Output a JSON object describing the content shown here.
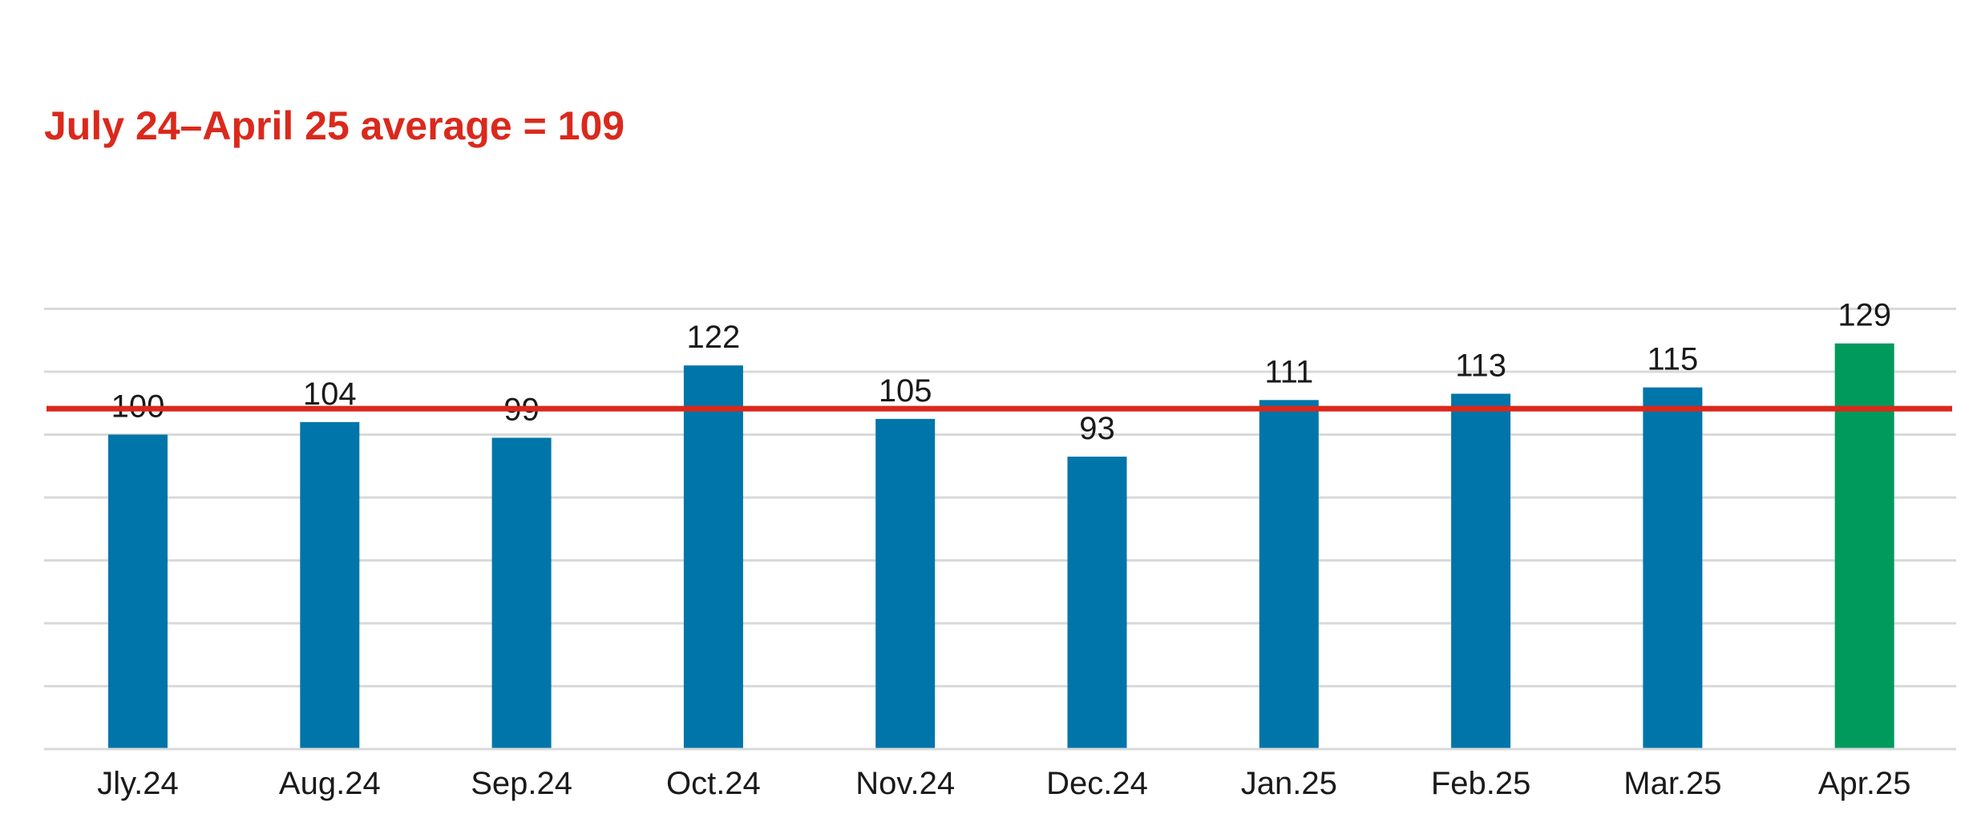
{
  "chart_data": {
    "type": "bar",
    "categories": [
      "Jly.24",
      "Aug.24",
      "Sep.24",
      "Oct.24",
      "Nov.24",
      "Dec.24",
      "Jan.25",
      "Feb.25",
      "Mar.25",
      "Apr.25"
    ],
    "values": [
      100,
      104,
      99,
      122,
      105,
      93,
      111,
      113,
      115,
      129
    ],
    "data_labels": [
      "100",
      "104",
      "99",
      "122",
      "105",
      "93",
      "111",
      "113",
      "115",
      "129"
    ],
    "ylim": [
      0,
      140
    ],
    "grid_step": 20,
    "grid": true,
    "y_tick_labels_shown": false,
    "bar_color": "#0075A9",
    "highlight_color": "#009A5C",
    "highlight_index": 9,
    "reference_line": {
      "value": 109,
      "label": "July 24–April 25 average = 109",
      "color": "#DA291C"
    }
  }
}
